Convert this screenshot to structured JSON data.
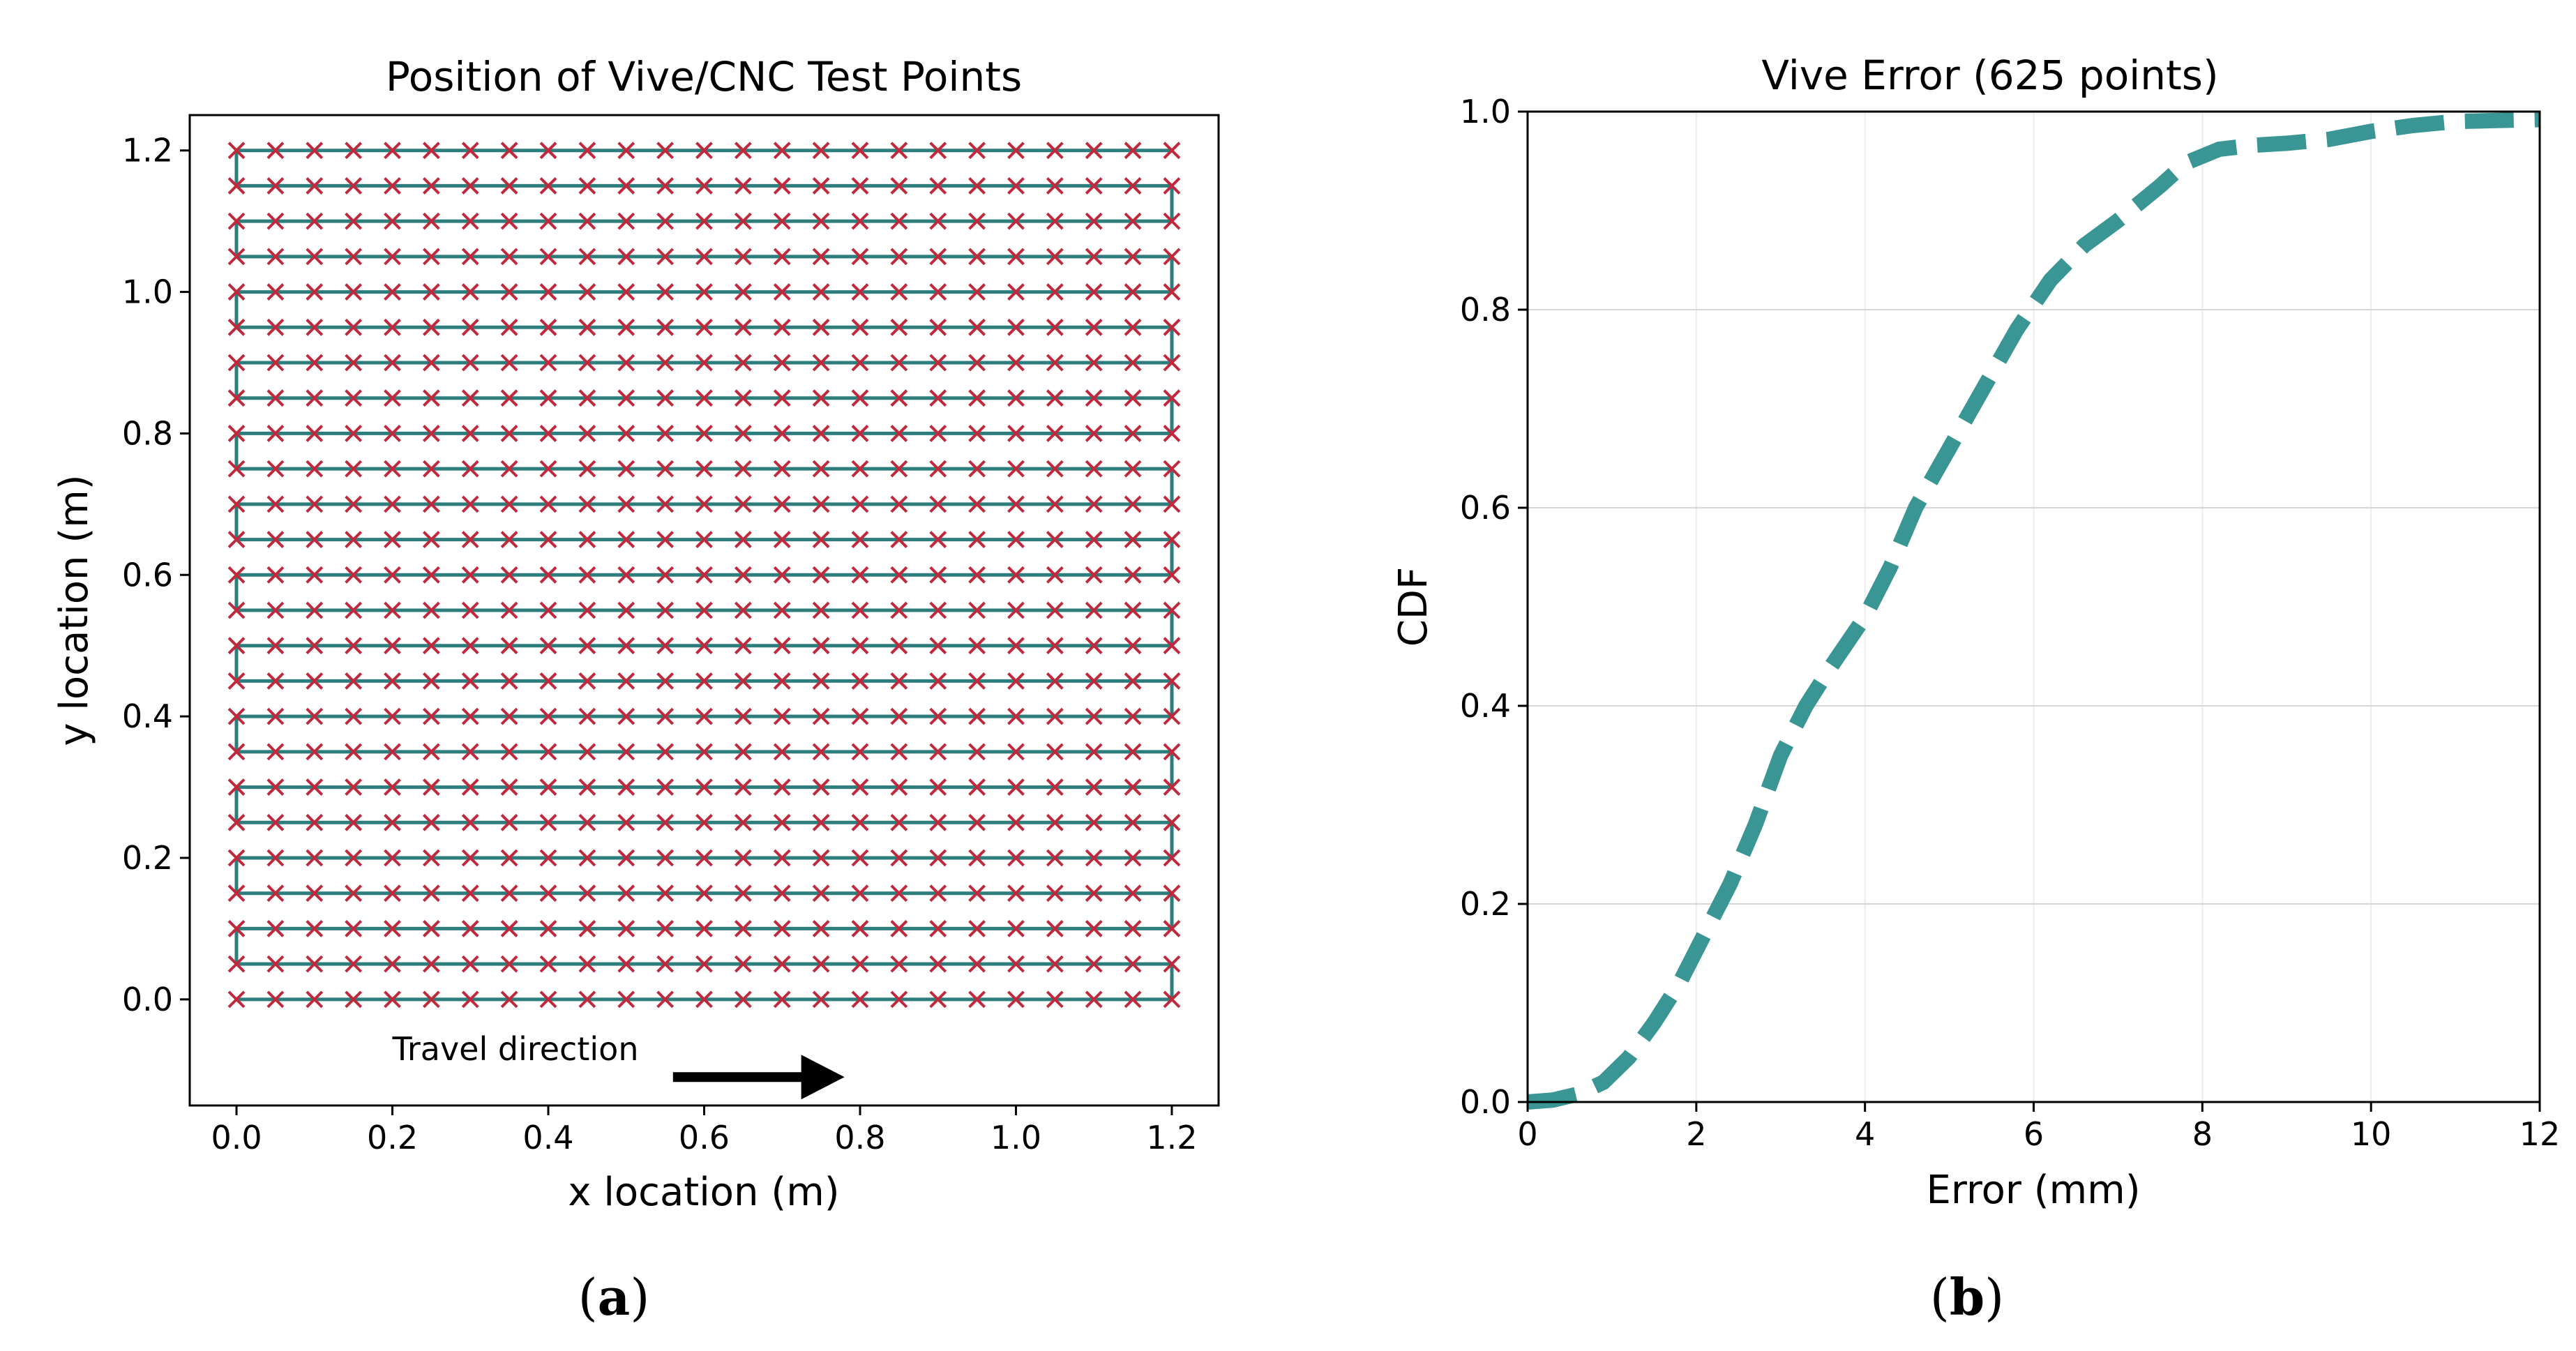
{
  "chart_data": [
    {
      "type": "scatter",
      "title": "Position of Vive/CNC Test Points",
      "xlabel": "x location (m)",
      "ylabel": "y location (m)",
      "xlim": [
        -0.06,
        1.26
      ],
      "ylim": [
        -0.15,
        1.25
      ],
      "xticks": [
        0.0,
        0.2,
        0.4,
        0.6,
        0.8,
        1.0,
        1.2
      ],
      "xtick_labels": [
        "0.0",
        "0.2",
        "0.4",
        "0.6",
        "0.8",
        "1.0",
        "1.2"
      ],
      "yticks": [
        0.0,
        0.2,
        0.4,
        0.6,
        0.8,
        1.0,
        1.2
      ],
      "ytick_labels": [
        "0.0",
        "0.2",
        "0.4",
        "0.6",
        "0.8",
        "1.0",
        "1.2"
      ],
      "grid": {
        "type": "raster",
        "x_start": 0.0,
        "x_end": 1.2,
        "x_count": 25,
        "y_start": 0.0,
        "y_end": 1.2,
        "y_count": 25
      },
      "marker_color": "#c0283c",
      "path_color": "#2e7d7d",
      "annotation": {
        "text": "Travel direction",
        "arrow_from": [
          0.56,
          -0.1
        ],
        "arrow_to": [
          0.78,
          -0.1
        ]
      },
      "panel_label": {
        "open": "(",
        "letter": "a",
        "close": ")"
      }
    },
    {
      "type": "line",
      "title": "Vive Error (625 points)",
      "xlabel": "Error (mm)",
      "ylabel": "CDF",
      "xlim": [
        0,
        12
      ],
      "ylim": [
        0.0,
        1.0
      ],
      "xticks": [
        0,
        2,
        4,
        6,
        8,
        10,
        12
      ],
      "xtick_labels": [
        "0",
        "2",
        "4",
        "6",
        "8",
        "10",
        "12"
      ],
      "yticks": [
        0.0,
        0.2,
        0.4,
        0.6,
        0.8,
        1.0
      ],
      "ytick_labels": [
        "0.0",
        "0.2",
        "0.4",
        "0.6",
        "0.8",
        "1.0"
      ],
      "grid": true,
      "line_color": "#3a9595",
      "line_style": "dashed",
      "series": [
        {
          "name": "CDF",
          "x": [
            0.0,
            0.3,
            0.6,
            0.9,
            1.2,
            1.5,
            1.8,
            2.1,
            2.4,
            2.7,
            3.0,
            3.3,
            3.6,
            4.0,
            4.3,
            4.6,
            5.0,
            5.4,
            5.8,
            6.2,
            6.6,
            7.0,
            7.5,
            7.8,
            8.2,
            8.6,
            9.0,
            9.5,
            10.0,
            10.5,
            11.0,
            11.5,
            12.0
          ],
          "y": [
            0.0,
            0.002,
            0.008,
            0.02,
            0.045,
            0.08,
            0.12,
            0.17,
            0.22,
            0.28,
            0.35,
            0.4,
            0.44,
            0.49,
            0.54,
            0.6,
            0.66,
            0.72,
            0.78,
            0.83,
            0.865,
            0.89,
            0.925,
            0.948,
            0.962,
            0.966,
            0.968,
            0.972,
            0.98,
            0.986,
            0.99,
            0.991,
            0.992
          ]
        }
      ],
      "panel_label": {
        "open": "(",
        "letter": "b",
        "close": ")"
      }
    }
  ]
}
